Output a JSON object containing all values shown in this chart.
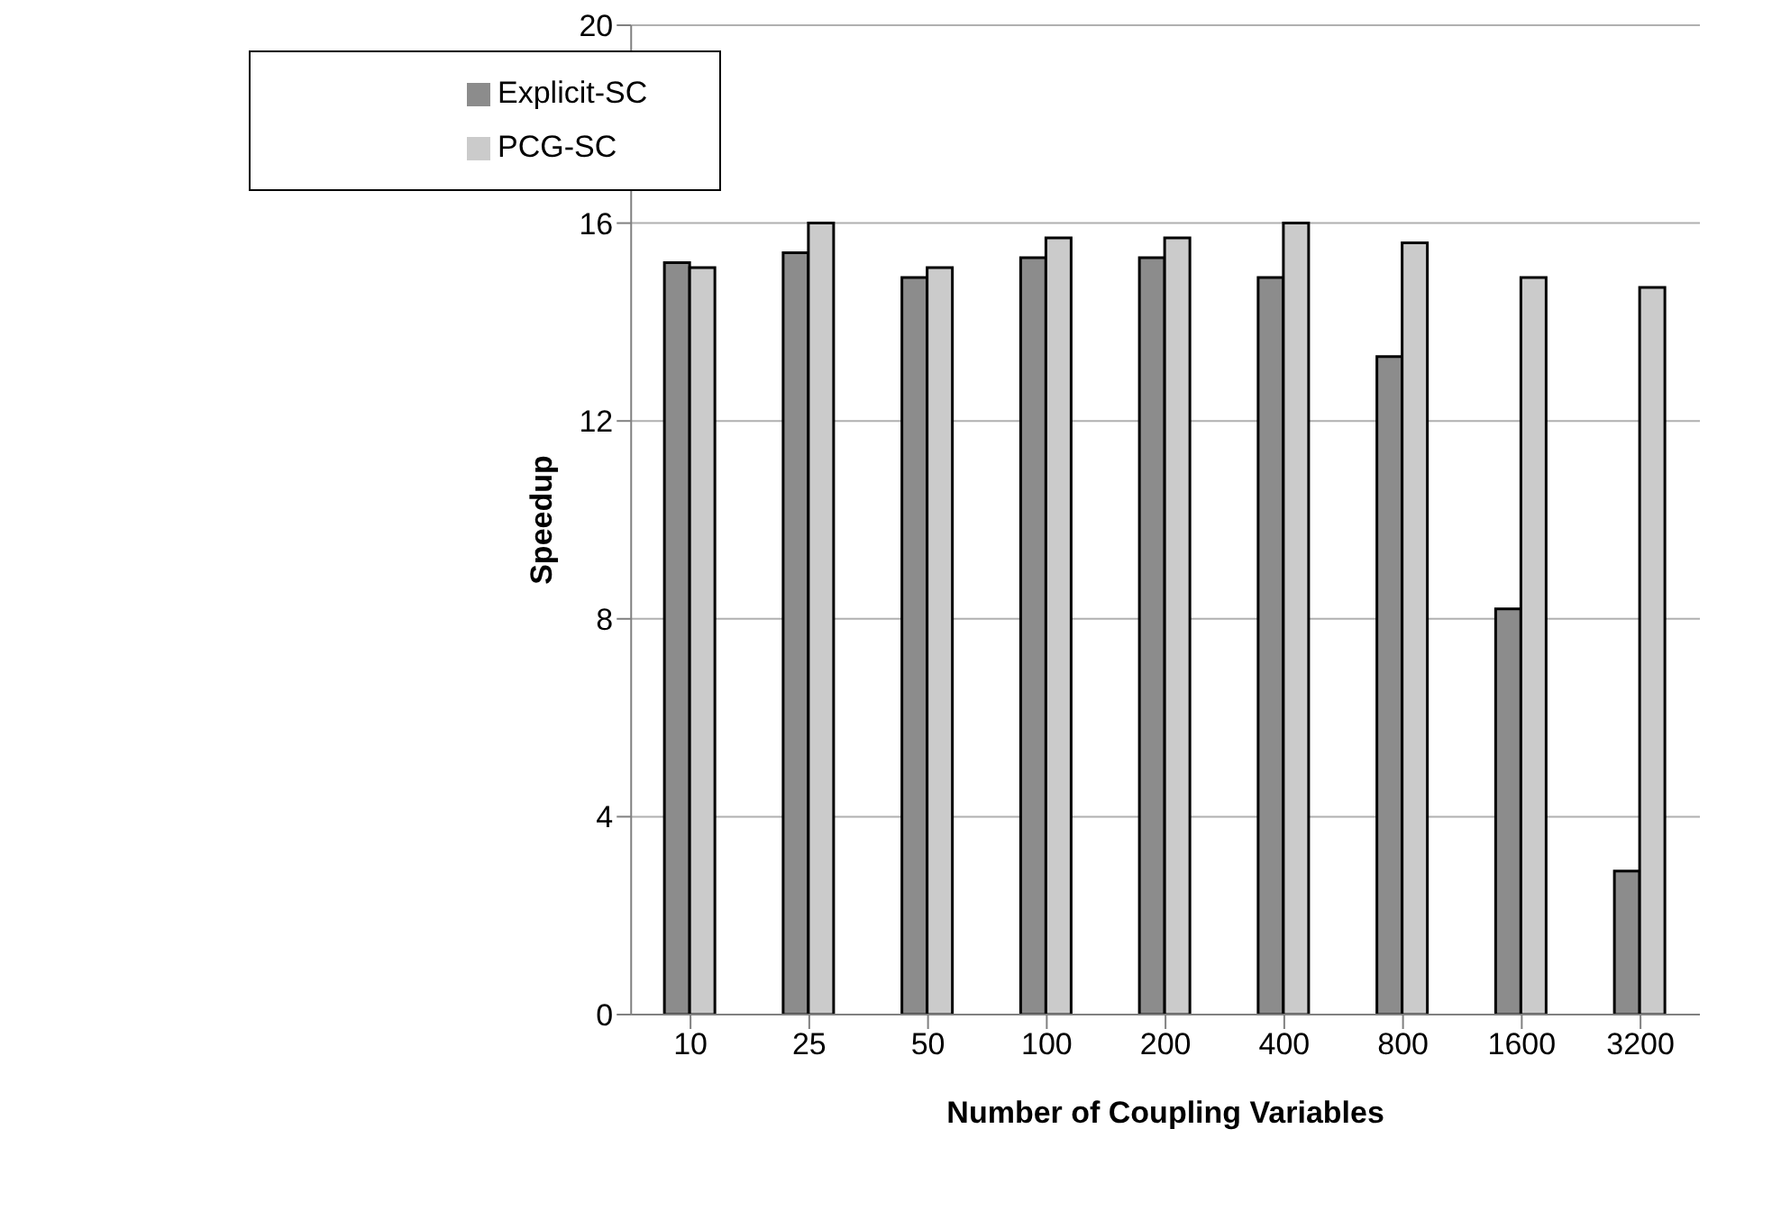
{
  "chart_data": {
    "type": "bar",
    "xlabel": "Number of Coupling Variables",
    "ylabel": "Speedup",
    "categories": [
      "10",
      "25",
      "50",
      "100",
      "200",
      "400",
      "800",
      "1600",
      "3200"
    ],
    "series": [
      {
        "name": "Explicit-SC",
        "color": "#8c8c8c",
        "values": [
          15.2,
          15.4,
          14.9,
          15.3,
          15.3,
          14.9,
          13.3,
          8.2,
          2.9
        ]
      },
      {
        "name": "PCG-SC",
        "color": "#cbcbcb",
        "values": [
          15.1,
          16.0,
          15.1,
          15.7,
          15.7,
          16.0,
          15.6,
          14.9,
          14.7
        ]
      }
    ],
    "ylim": [
      0,
      20
    ],
    "yticks": [
      0,
      4,
      8,
      12,
      16,
      20
    ],
    "grid": "y",
    "legend": "top left"
  }
}
